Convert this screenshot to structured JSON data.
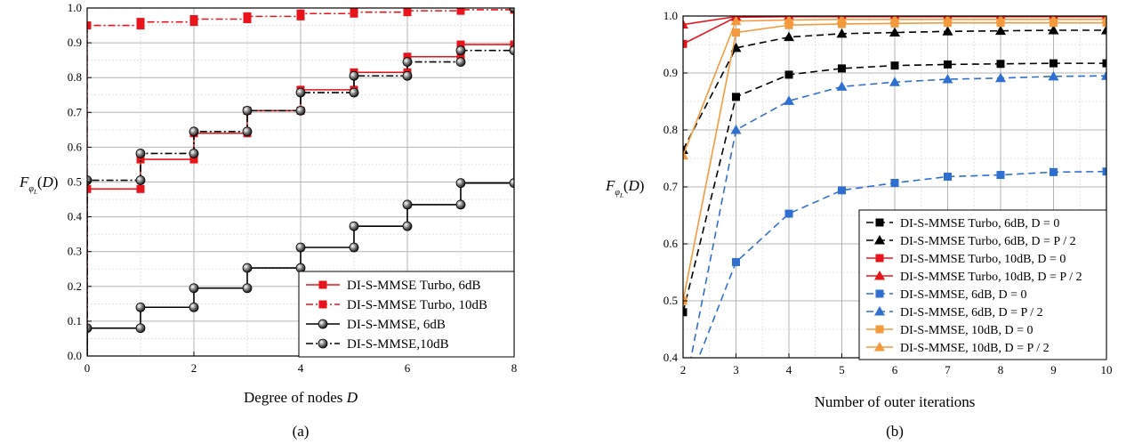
{
  "chart_data": [
    {
      "type": "line",
      "panel": "(a)",
      "caption": "(a)",
      "xlabel": "Degree of nodes D",
      "ylabel": "F_φL(D)",
      "xlim": [
        0,
        8
      ],
      "ylim": [
        0,
        1.0
      ],
      "xticks": [
        0,
        2,
        4,
        6,
        8
      ],
      "yticks": [
        0.0,
        0.1,
        0.2,
        0.3,
        0.4,
        0.5,
        0.6,
        0.7,
        0.8,
        0.9,
        1.0
      ],
      "grid": true,
      "legend_position": "bottom-right",
      "step": true,
      "series": [
        {
          "name": "DI-S-MMSE Turbo, 6dB",
          "color": "#e8141c",
          "marker": "square",
          "dash": "solid",
          "x": [
            0,
            1,
            2,
            3,
            4,
            5,
            6,
            7,
            8
          ],
          "y": [
            0.48,
            0.565,
            0.64,
            0.705,
            0.765,
            0.815,
            0.86,
            0.895,
            1.0
          ]
        },
        {
          "name": "DI-S-MMSE Turbo, 10dB",
          "color": "#e8141c",
          "marker": "square",
          "dash": "dashdot",
          "x": [
            0,
            1,
            2,
            3,
            4,
            5,
            6,
            7,
            8
          ],
          "y": [
            0.95,
            0.96,
            0.968,
            0.976,
            0.984,
            0.988,
            0.992,
            0.995,
            1.0
          ]
        },
        {
          "name": "DI-S-MMSE, 6dB",
          "color": "#000000",
          "marker": "ball",
          "dash": "solid",
          "x": [
            0,
            1,
            2,
            3,
            4,
            5,
            6,
            7,
            8
          ],
          "y": [
            0.08,
            0.14,
            0.195,
            0.253,
            0.312,
            0.373,
            0.435,
            0.497,
            1.0
          ]
        },
        {
          "name": "DI-S-MMSE,10dB",
          "color": "#000000",
          "marker": "ball",
          "dash": "dashdot",
          "x": [
            0,
            1,
            2,
            3,
            4,
            5,
            6,
            7,
            8
          ],
          "y": [
            0.505,
            0.582,
            0.645,
            0.705,
            0.757,
            0.805,
            0.845,
            0.878,
            1.0
          ]
        }
      ]
    },
    {
      "type": "line",
      "panel": "(b)",
      "caption": "(b)",
      "xlabel": "Number of outer iterations",
      "ylabel": "F_φL(D)",
      "xlim": [
        2,
        10
      ],
      "ylim": [
        0.4,
        1.0
      ],
      "xticks": [
        2,
        3,
        4,
        5,
        6,
        7,
        8,
        9,
        10
      ],
      "yticks": [
        0.4,
        0.5,
        0.6,
        0.7,
        0.8,
        0.9,
        1.0
      ],
      "grid": true,
      "legend_position": "bottom-right",
      "series": [
        {
          "name": "DI-S-MMSE Turbo, 6dB, D = 0",
          "color": "#000000",
          "marker": "square",
          "dash": "dashed",
          "x": [
            2,
            3,
            4,
            5,
            6,
            7,
            8,
            9,
            10
          ],
          "y": [
            0.48,
            0.858,
            0.897,
            0.908,
            0.913,
            0.915,
            0.916,
            0.917,
            0.917
          ]
        },
        {
          "name": "DI-S-MMSE Turbo, 6dB, D = P / 2",
          "color": "#000000",
          "marker": "triangle",
          "dash": "dashed",
          "x": [
            2,
            3,
            4,
            5,
            6,
            7,
            8,
            9,
            10
          ],
          "y": [
            0.765,
            0.944,
            0.963,
            0.969,
            0.971,
            0.973,
            0.974,
            0.975,
            0.975
          ]
        },
        {
          "name": "DI-S-MMSE Turbo, 10dB, D = 0",
          "color": "#e8141c",
          "marker": "square",
          "dash": "solid",
          "x": [
            2,
            3,
            4,
            5,
            6,
            7,
            8,
            9,
            10
          ],
          "y": [
            0.951,
            0.998,
            0.999,
            0.999,
            0.999,
            0.999,
            0.999,
            0.999,
            0.999
          ]
        },
        {
          "name": "DI-S-MMSE Turbo, 10dB, D = P / 2",
          "color": "#e8141c",
          "marker": "triangle",
          "dash": "solid",
          "x": [
            2,
            3,
            4,
            5,
            6,
            7,
            8,
            9,
            10
          ],
          "y": [
            0.985,
            0.999,
            1.0,
            1.0,
            1.0,
            1.0,
            1.0,
            1.0,
            1.0
          ]
        },
        {
          "name": "DI-S-MMSE, 6dB, D = 0",
          "color": "#2f6fd0",
          "marker": "square",
          "dash": "dashed",
          "x": [
            2,
            3,
            4,
            5,
            6,
            7,
            8,
            9,
            10
          ],
          "y": [
            0.33,
            0.568,
            0.653,
            0.694,
            0.707,
            0.718,
            0.721,
            0.726,
            0.727
          ]
        },
        {
          "name": "DI-S-MMSE, 6dB, D = P / 2",
          "color": "#2f6fd0",
          "marker": "triangle",
          "dash": "dashed",
          "x": [
            2,
            3,
            4,
            5,
            6,
            7,
            8,
            9,
            10
          ],
          "y": [
            0.33,
            0.8,
            0.851,
            0.876,
            0.884,
            0.889,
            0.891,
            0.894,
            0.895
          ]
        },
        {
          "name": "DI-S-MMSE, 10dB, D = 0",
          "color": "#f39a3d",
          "marker": "square",
          "dash": "solid",
          "x": [
            2,
            3,
            4,
            5,
            6,
            7,
            8,
            9,
            10
          ],
          "y": [
            0.5,
            0.971,
            0.984,
            0.986,
            0.987,
            0.988,
            0.988,
            0.988,
            0.988
          ]
        },
        {
          "name": "DI-S-MMSE, 10dB, D = P / 2",
          "color": "#f39a3d",
          "marker": "triangle",
          "dash": "solid",
          "x": [
            2,
            3,
            4,
            5,
            6,
            7,
            8,
            9,
            10
          ],
          "y": [
            0.755,
            0.991,
            0.993,
            0.994,
            0.994,
            0.994,
            0.994,
            0.994,
            0.994
          ]
        }
      ]
    }
  ]
}
